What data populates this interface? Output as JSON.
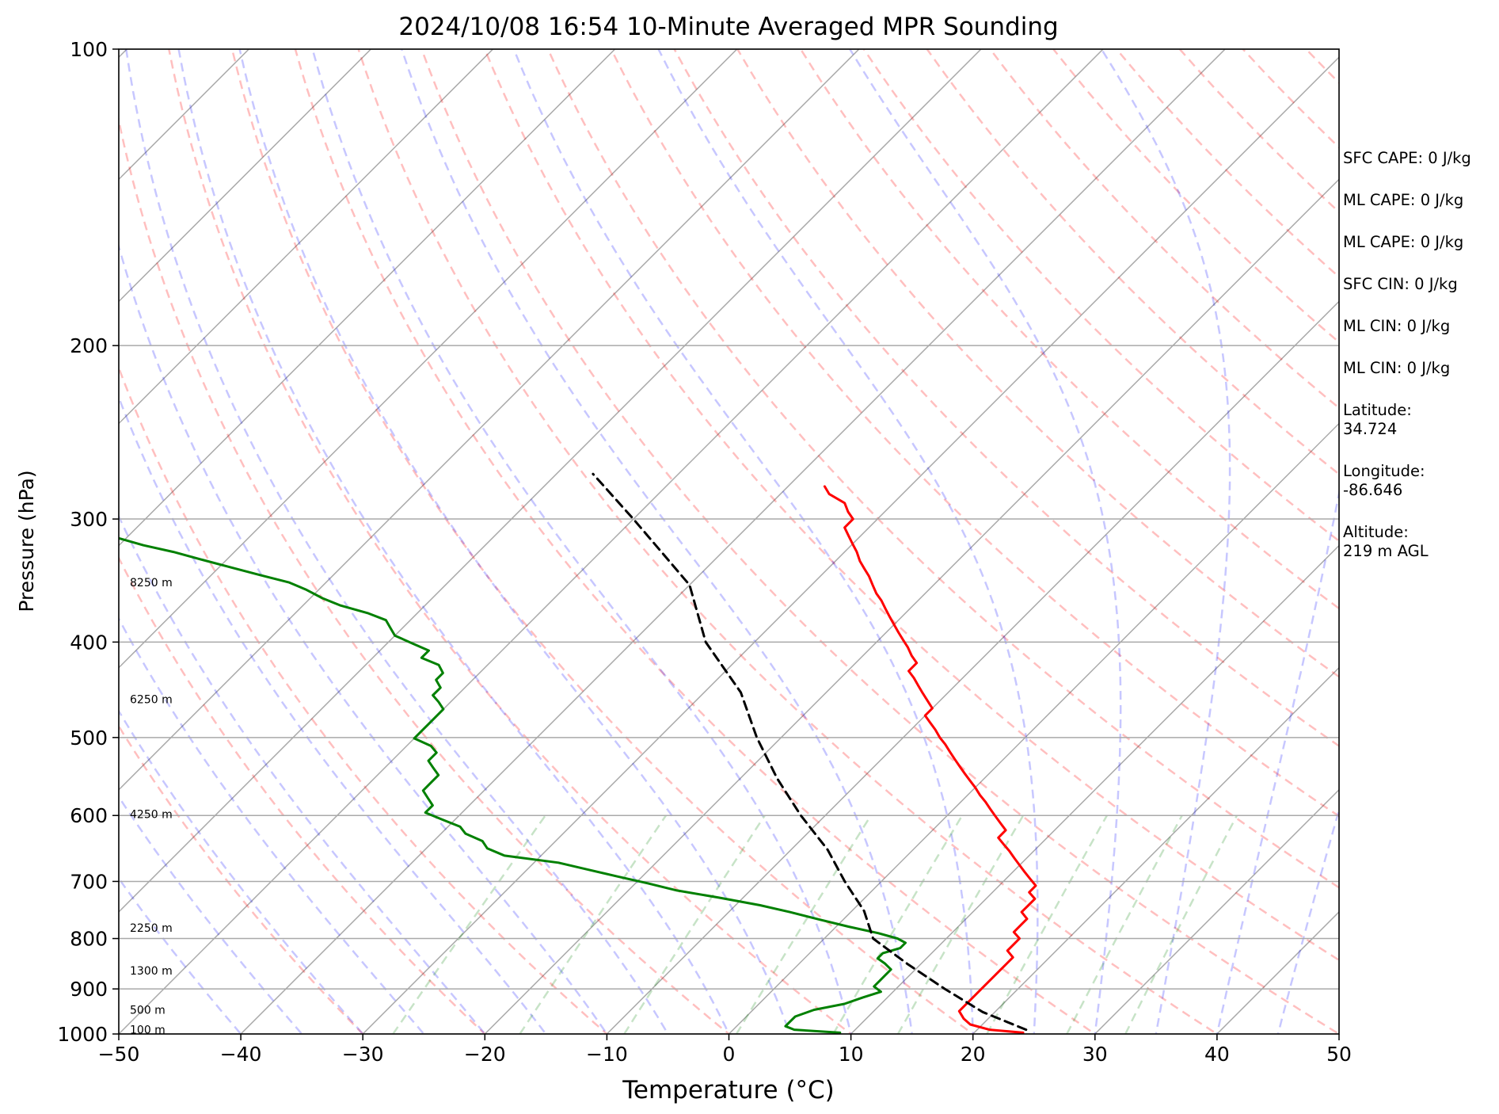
{
  "chart_data": {
    "type": "skew-t log-p",
    "title": "2024/10/08 16:54 10-Minute Averaged MPR Sounding",
    "xlabel": "Temperature (°C)",
    "ylabel": "Pressure (hPa)",
    "xlim": [
      -50,
      50
    ],
    "ylim": [
      1000,
      100
    ],
    "y_scale": "log",
    "x_ticks": [
      "−50",
      "−40",
      "−30",
      "−20",
      "−10",
      "0",
      "10",
      "20",
      "30",
      "40",
      "50"
    ],
    "y_ticks": [
      "100",
      "200",
      "300",
      "400",
      "500",
      "600",
      "700",
      "800",
      "900",
      "1000"
    ],
    "height_labels": [
      {
        "text": "100 m",
        "p": 990
      },
      {
        "text": "500 m",
        "p": 945
      },
      {
        "text": "1300 m",
        "p": 862
      },
      {
        "text": "2250 m",
        "p": 780
      },
      {
        "text": "4250 m",
        "p": 598
      },
      {
        "text": "6250 m",
        "p": 457
      },
      {
        "text": "8250 m",
        "p": 348
      }
    ],
    "series": [
      {
        "type": "temperature",
        "color": "#ff0000",
        "points": [
          [
            24,
            997
          ],
          [
            21,
            990
          ],
          [
            19,
            978
          ],
          [
            18,
            965
          ],
          [
            17,
            948
          ],
          [
            17,
            938
          ],
          [
            17,
            925
          ],
          [
            17,
            911
          ],
          [
            17,
            898
          ],
          [
            17,
            885
          ],
          [
            17,
            873
          ],
          [
            17,
            860
          ],
          [
            17,
            848
          ],
          [
            17,
            836
          ],
          [
            16,
            823
          ],
          [
            16,
            811
          ],
          [
            16,
            800
          ],
          [
            15,
            788
          ],
          [
            15,
            776
          ],
          [
            15,
            764
          ],
          [
            14,
            752
          ],
          [
            14,
            740
          ],
          [
            14,
            729
          ],
          [
            13,
            718
          ],
          [
            13,
            707
          ],
          [
            12,
            696
          ],
          [
            11,
            685
          ],
          [
            10,
            674
          ],
          [
            9,
            663
          ],
          [
            8,
            652
          ],
          [
            7,
            642
          ],
          [
            6,
            632
          ],
          [
            6,
            621
          ],
          [
            5,
            611
          ],
          [
            4,
            601
          ],
          [
            3,
            591
          ],
          [
            2,
            581
          ],
          [
            1,
            572
          ],
          [
            0,
            562
          ],
          [
            -1,
            553
          ],
          [
            -2,
            544
          ],
          [
            -3,
            535
          ],
          [
            -4,
            526
          ],
          [
            -5,
            517
          ],
          [
            -6,
            508
          ],
          [
            -7,
            500
          ],
          [
            -8,
            491
          ],
          [
            -9,
            483
          ],
          [
            -10,
            475
          ],
          [
            -10,
            467
          ],
          [
            -11,
            459
          ],
          [
            -12,
            451
          ],
          [
            -13,
            443
          ],
          [
            -14,
            435
          ],
          [
            -15,
            428
          ],
          [
            -15,
            420
          ],
          [
            -16,
            413
          ],
          [
            -17,
            405
          ],
          [
            -18,
            398
          ],
          [
            -19,
            391
          ],
          [
            -20,
            384
          ],
          [
            -21,
            377
          ],
          [
            -22,
            370
          ],
          [
            -23,
            363
          ],
          [
            -24,
            357
          ],
          [
            -25,
            350
          ],
          [
            -26,
            343
          ],
          [
            -27,
            337
          ],
          [
            -28,
            331
          ],
          [
            -29,
            324
          ],
          [
            -30,
            318
          ],
          [
            -31,
            312
          ],
          [
            -32,
            306
          ],
          [
            -32,
            300
          ],
          [
            -33,
            295
          ],
          [
            -34,
            289
          ],
          [
            -36,
            283
          ],
          [
            -37,
            278
          ]
        ]
      },
      {
        "type": "dewpoint",
        "color": "#008000",
        "points": [
          [
            9,
            997
          ],
          [
            5,
            990
          ],
          [
            4,
            982
          ],
          [
            4,
            973
          ],
          [
            4,
            960
          ],
          [
            5,
            945
          ],
          [
            7,
            932
          ],
          [
            8,
            918
          ],
          [
            9,
            906
          ],
          [
            8,
            895
          ],
          [
            8,
            883
          ],
          [
            8,
            871
          ],
          [
            8,
            860
          ],
          [
            7,
            848
          ],
          [
            6,
            838
          ],
          [
            6,
            828
          ],
          [
            7,
            818
          ],
          [
            7,
            808
          ],
          [
            6,
            800
          ],
          [
            4,
            790
          ],
          [
            1,
            778
          ],
          [
            -2,
            765
          ],
          [
            -5,
            752
          ],
          [
            -8,
            740
          ],
          [
            -12,
            727
          ],
          [
            -16,
            715
          ],
          [
            -19,
            703
          ],
          [
            -22,
            692
          ],
          [
            -25,
            681
          ],
          [
            -28,
            670
          ],
          [
            -33,
            659
          ],
          [
            -35,
            648
          ],
          [
            -36,
            637
          ],
          [
            -38,
            626
          ],
          [
            -39,
            616
          ],
          [
            -41,
            606
          ],
          [
            -43,
            596
          ],
          [
            -43,
            586
          ],
          [
            -44,
            576
          ],
          [
            -45,
            566
          ],
          [
            -45,
            556
          ],
          [
            -45,
            546
          ],
          [
            -46,
            537
          ],
          [
            -47,
            528
          ],
          [
            -47,
            518
          ],
          [
            -48,
            510
          ],
          [
            -50,
            501
          ],
          [
            -50,
            493
          ],
          [
            -50,
            485
          ],
          [
            -50,
            476
          ],
          [
            -50,
            468
          ],
          [
            -51,
            460
          ],
          [
            -52,
            453
          ],
          [
            -52,
            445
          ],
          [
            -53,
            437
          ],
          [
            -53,
            430
          ],
          [
            -54,
            422
          ],
          [
            -56,
            415
          ],
          [
            -56,
            408
          ],
          [
            -58,
            401
          ],
          [
            -60,
            394
          ],
          [
            -61,
            387
          ],
          [
            -62,
            380
          ],
          [
            -64,
            374
          ],
          [
            -67,
            367
          ],
          [
            -69,
            361
          ],
          [
            -71,
            354
          ],
          [
            -73,
            348
          ],
          [
            -76,
            342
          ],
          [
            -79,
            336
          ],
          [
            -82,
            330
          ],
          [
            -85,
            324
          ],
          [
            -88,
            319
          ],
          [
            -91,
            313
          ],
          [
            -94,
            307
          ],
          [
            -97,
            302
          ],
          [
            -100,
            296
          ]
        ]
      },
      {
        "type": "parcel",
        "color": "#000000",
        "dashed": true,
        "points": [
          [
            24,
            990
          ],
          [
            19,
            950
          ],
          [
            14,
            900
          ],
          [
            9,
            850
          ],
          [
            4,
            800
          ],
          [
            1,
            750
          ],
          [
            -3,
            700
          ],
          [
            -7,
            650
          ],
          [
            -12,
            600
          ],
          [
            -17,
            550
          ],
          [
            -22,
            500
          ],
          [
            -27,
            450
          ],
          [
            -34,
            400
          ],
          [
            -40,
            350
          ],
          [
            -50,
            300
          ],
          [
            -57,
            270
          ]
        ]
      }
    ],
    "reference_lines": {
      "isotherms": "gray solid, skewed",
      "isobars": "gray solid, horizontal at tick pressures",
      "dry_adiabats": "red dashed",
      "moist_adiabats": "blue dashed",
      "mixing_ratio_lines": "green dashed"
    }
  },
  "info_panel": {
    "items": [
      "SFC CAPE: 0 J/kg",
      "ML CAPE: 0 J/kg",
      "ML CAPE: 0 J/kg",
      "SFC CIN: 0 J/kg",
      "ML CIN: 0 J/kg",
      "ML CIN: 0 J/kg",
      "Latitude:\n34.724",
      "Longitude:\n-86.646",
      "Altitude:\n219 m AGL"
    ]
  }
}
